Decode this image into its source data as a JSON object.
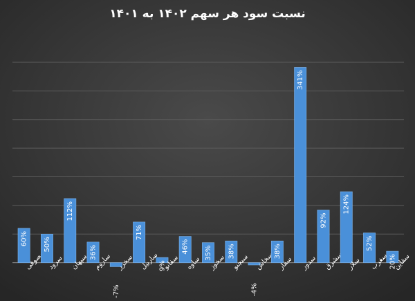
{
  "chart_data": {
    "type": "bar",
    "title": "نسبت سود هر سهم ۱۴۰۲ به ۱۴۰۱",
    "categories": [
      "سصوفی",
      "سرود",
      "سپهان",
      "ساروم",
      "سخزر",
      "ساربیل",
      "سفانو",
      "ساوه",
      "سخوز",
      "سبجنو",
      "سخاش",
      "سفار",
      "سدور",
      "سشرق",
      "سلار",
      "سغرب",
      "سقاین"
    ],
    "values": [
      60,
      50,
      112,
      36,
      -7,
      71,
      9,
      46,
      35,
      38,
      -4,
      38,
      341,
      92,
      124,
      52,
      20
    ],
    "value_labels": [
      "60%",
      "50%",
      "112%",
      "36%",
      "-7%",
      "71%",
      "9%",
      "46%",
      "35%",
      "38%",
      "-4%",
      "38%",
      "341%",
      "92%",
      "124%",
      "52%",
      "20%"
    ],
    "color": "#4a90d9",
    "ylim": [
      -50,
      350
    ],
    "yticks": [
      0,
      50,
      100,
      150,
      200,
      250,
      300,
      350
    ],
    "grid": true
  }
}
